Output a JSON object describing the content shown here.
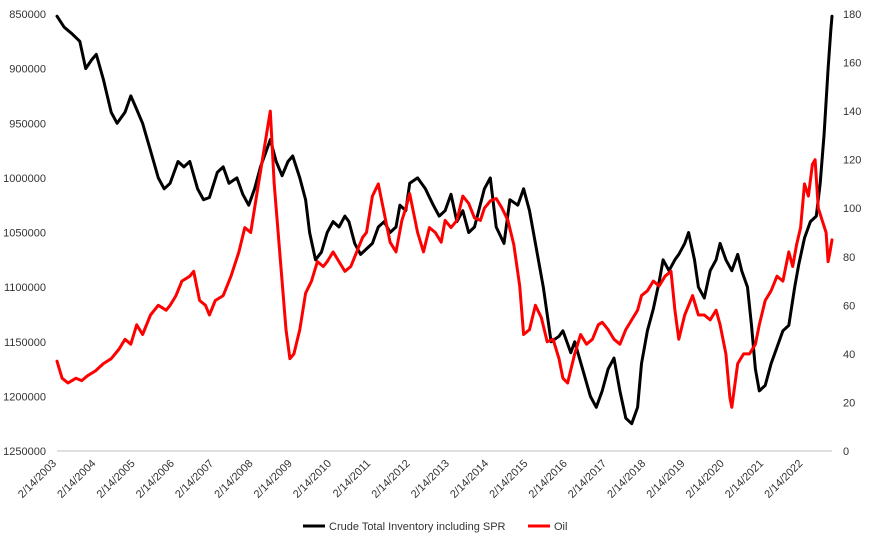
{
  "chart_data": {
    "type": "line",
    "title": "",
    "xlabel": "",
    "ylabel": "",
    "x_tick_labels": [
      "2/14/2003",
      "2/14/2004",
      "2/14/2005",
      "2/14/2006",
      "2/14/2007",
      "2/14/2008",
      "2/14/2009",
      "2/14/2010",
      "2/14/2011",
      "2/14/2012",
      "2/14/2013",
      "2/14/2014",
      "2/14/2015",
      "2/14/2016",
      "2/14/2017",
      "2/14/2018",
      "2/14/2019",
      "2/14/2020",
      "2/14/2021",
      "2/14/2022"
    ],
    "x_range": [
      2003.12,
      2022.85
    ],
    "left_axis": {
      "inverted": true,
      "ylim": [
        850000,
        1250000
      ],
      "tick_labels": [
        "850000",
        "900000",
        "950000",
        "1000000",
        "1050000",
        "1100000",
        "1150000",
        "1200000",
        "1250000"
      ]
    },
    "right_axis": {
      "ylim": [
        0,
        180
      ],
      "tick_labels": [
        "0",
        "20",
        "40",
        "60",
        "80",
        "100",
        "120",
        "140",
        "160",
        "180"
      ]
    },
    "grid": false,
    "legend_position": "bottom",
    "series": [
      {
        "name": "Crude Total Inventory including SPR",
        "axis": "left",
        "color": "#000000",
        "points": [
          [
            2003.12,
            852000
          ],
          [
            2003.3,
            862000
          ],
          [
            2003.5,
            868000
          ],
          [
            2003.7,
            875000
          ],
          [
            2003.85,
            900000
          ],
          [
            2004.0,
            892000
          ],
          [
            2004.12,
            887000
          ],
          [
            2004.3,
            910000
          ],
          [
            2004.5,
            940000
          ],
          [
            2004.65,
            950000
          ],
          [
            2004.85,
            940000
          ],
          [
            2005.0,
            925000
          ],
          [
            2005.12,
            935000
          ],
          [
            2005.3,
            950000
          ],
          [
            2005.5,
            975000
          ],
          [
            2005.7,
            1000000
          ],
          [
            2005.85,
            1010000
          ],
          [
            2006.0,
            1005000
          ],
          [
            2006.2,
            985000
          ],
          [
            2006.35,
            990000
          ],
          [
            2006.5,
            985000
          ],
          [
            2006.7,
            1010000
          ],
          [
            2006.85,
            1020000
          ],
          [
            2007.0,
            1018000
          ],
          [
            2007.2,
            995000
          ],
          [
            2007.35,
            990000
          ],
          [
            2007.5,
            1005000
          ],
          [
            2007.7,
            1000000
          ],
          [
            2007.85,
            1015000
          ],
          [
            2008.0,
            1025000
          ],
          [
            2008.15,
            1010000
          ],
          [
            2008.3,
            990000
          ],
          [
            2008.45,
            975000
          ],
          [
            2008.55,
            965000
          ],
          [
            2008.7,
            985000
          ],
          [
            2008.85,
            998000
          ],
          [
            2009.0,
            985000
          ],
          [
            2009.12,
            980000
          ],
          [
            2009.3,
            1000000
          ],
          [
            2009.45,
            1020000
          ],
          [
            2009.55,
            1050000
          ],
          [
            2009.7,
            1075000
          ],
          [
            2009.85,
            1068000
          ],
          [
            2010.0,
            1050000
          ],
          [
            2010.15,
            1040000
          ],
          [
            2010.3,
            1045000
          ],
          [
            2010.45,
            1035000
          ],
          [
            2010.55,
            1040000
          ],
          [
            2010.7,
            1060000
          ],
          [
            2010.85,
            1070000
          ],
          [
            2011.0,
            1065000
          ],
          [
            2011.15,
            1060000
          ],
          [
            2011.3,
            1045000
          ],
          [
            2011.45,
            1040000
          ],
          [
            2011.6,
            1050000
          ],
          [
            2011.75,
            1045000
          ],
          [
            2011.85,
            1025000
          ],
          [
            2012.0,
            1030000
          ],
          [
            2012.1,
            1005000
          ],
          [
            2012.3,
            1000000
          ],
          [
            2012.5,
            1010000
          ],
          [
            2012.7,
            1025000
          ],
          [
            2012.85,
            1035000
          ],
          [
            2013.0,
            1030000
          ],
          [
            2013.15,
            1015000
          ],
          [
            2013.3,
            1040000
          ],
          [
            2013.45,
            1030000
          ],
          [
            2013.6,
            1050000
          ],
          [
            2013.75,
            1045000
          ],
          [
            2014.0,
            1010000
          ],
          [
            2014.15,
            1000000
          ],
          [
            2014.3,
            1045000
          ],
          [
            2014.5,
            1060000
          ],
          [
            2014.65,
            1020000
          ],
          [
            2014.85,
            1025000
          ],
          [
            2015.0,
            1010000
          ],
          [
            2015.15,
            1030000
          ],
          [
            2015.3,
            1060000
          ],
          [
            2015.5,
            1100000
          ],
          [
            2015.7,
            1150000
          ],
          [
            2015.9,
            1145000
          ],
          [
            2016.0,
            1140000
          ],
          [
            2016.2,
            1160000
          ],
          [
            2016.3,
            1150000
          ],
          [
            2016.5,
            1175000
          ],
          [
            2016.7,
            1200000
          ],
          [
            2016.85,
            1210000
          ],
          [
            2017.0,
            1195000
          ],
          [
            2017.15,
            1175000
          ],
          [
            2017.3,
            1165000
          ],
          [
            2017.45,
            1195000
          ],
          [
            2017.6,
            1220000
          ],
          [
            2017.75,
            1225000
          ],
          [
            2017.9,
            1210000
          ],
          [
            2018.0,
            1170000
          ],
          [
            2018.15,
            1140000
          ],
          [
            2018.3,
            1120000
          ],
          [
            2018.45,
            1095000
          ],
          [
            2018.55,
            1075000
          ],
          [
            2018.7,
            1085000
          ],
          [
            2018.85,
            1075000
          ],
          [
            2018.95,
            1070000
          ],
          [
            2019.1,
            1060000
          ],
          [
            2019.2,
            1050000
          ],
          [
            2019.35,
            1075000
          ],
          [
            2019.45,
            1100000
          ],
          [
            2019.6,
            1110000
          ],
          [
            2019.75,
            1085000
          ],
          [
            2019.9,
            1075000
          ],
          [
            2020.0,
            1060000
          ],
          [
            2020.15,
            1075000
          ],
          [
            2020.3,
            1085000
          ],
          [
            2020.45,
            1070000
          ],
          [
            2020.55,
            1085000
          ],
          [
            2020.7,
            1100000
          ],
          [
            2020.8,
            1135000
          ],
          [
            2020.9,
            1175000
          ],
          [
            2021.0,
            1195000
          ],
          [
            2021.15,
            1190000
          ],
          [
            2021.3,
            1170000
          ],
          [
            2021.45,
            1155000
          ],
          [
            2021.6,
            1140000
          ],
          [
            2021.75,
            1135000
          ],
          [
            2021.9,
            1100000
          ],
          [
            2022.0,
            1080000
          ],
          [
            2022.15,
            1055000
          ],
          [
            2022.3,
            1040000
          ],
          [
            2022.45,
            1035000
          ],
          [
            2022.55,
            1005000
          ],
          [
            2022.65,
            960000
          ],
          [
            2022.75,
            900000
          ],
          [
            2022.82,
            865000
          ],
          [
            2022.85,
            852000
          ]
        ]
      },
      {
        "name": "Oil",
        "axis": "right",
        "color": "#ff0000",
        "points": [
          [
            2003.12,
            37
          ],
          [
            2003.25,
            30
          ],
          [
            2003.4,
            28
          ],
          [
            2003.6,
            30
          ],
          [
            2003.75,
            29
          ],
          [
            2003.9,
            31
          ],
          [
            2004.1,
            33
          ],
          [
            2004.3,
            36
          ],
          [
            2004.5,
            38
          ],
          [
            2004.7,
            42
          ],
          [
            2004.85,
            46
          ],
          [
            2005.0,
            44
          ],
          [
            2005.15,
            52
          ],
          [
            2005.3,
            48
          ],
          [
            2005.5,
            56
          ],
          [
            2005.7,
            60
          ],
          [
            2005.9,
            58
          ],
          [
            2006.0,
            60
          ],
          [
            2006.15,
            64
          ],
          [
            2006.3,
            70
          ],
          [
            2006.5,
            72
          ],
          [
            2006.6,
            74
          ],
          [
            2006.75,
            62
          ],
          [
            2006.9,
            60
          ],
          [
            2007.0,
            56
          ],
          [
            2007.15,
            62
          ],
          [
            2007.35,
            64
          ],
          [
            2007.55,
            72
          ],
          [
            2007.75,
            82
          ],
          [
            2007.9,
            92
          ],
          [
            2008.05,
            90
          ],
          [
            2008.2,
            105
          ],
          [
            2008.35,
            120
          ],
          [
            2008.5,
            135
          ],
          [
            2008.55,
            140
          ],
          [
            2008.65,
            110
          ],
          [
            2008.8,
            80
          ],
          [
            2008.95,
            50
          ],
          [
            2009.05,
            38
          ],
          [
            2009.15,
            40
          ],
          [
            2009.3,
            50
          ],
          [
            2009.45,
            65
          ],
          [
            2009.6,
            70
          ],
          [
            2009.75,
            78
          ],
          [
            2009.9,
            76
          ],
          [
            2010.0,
            78
          ],
          [
            2010.15,
            82
          ],
          [
            2010.3,
            78
          ],
          [
            2010.45,
            74
          ],
          [
            2010.6,
            76
          ],
          [
            2010.75,
            82
          ],
          [
            2010.9,
            88
          ],
          [
            2011.0,
            90
          ],
          [
            2011.15,
            105
          ],
          [
            2011.3,
            110
          ],
          [
            2011.45,
            98
          ],
          [
            2011.6,
            86
          ],
          [
            2011.75,
            82
          ],
          [
            2011.9,
            95
          ],
          [
            2012.0,
            100
          ],
          [
            2012.1,
            106
          ],
          [
            2012.3,
            90
          ],
          [
            2012.45,
            82
          ],
          [
            2012.6,
            92
          ],
          [
            2012.75,
            90
          ],
          [
            2012.9,
            86
          ],
          [
            2013.0,
            95
          ],
          [
            2013.15,
            92
          ],
          [
            2013.3,
            95
          ],
          [
            2013.45,
            105
          ],
          [
            2013.6,
            102
          ],
          [
            2013.75,
            96
          ],
          [
            2013.9,
            95
          ],
          [
            2014.0,
            100
          ],
          [
            2014.15,
            103
          ],
          [
            2014.3,
            104
          ],
          [
            2014.45,
            100
          ],
          [
            2014.6,
            95
          ],
          [
            2014.75,
            85
          ],
          [
            2014.9,
            68
          ],
          [
            2015.0,
            48
          ],
          [
            2015.15,
            50
          ],
          [
            2015.3,
            60
          ],
          [
            2015.45,
            55
          ],
          [
            2015.6,
            45
          ],
          [
            2015.75,
            46
          ],
          [
            2015.9,
            38
          ],
          [
            2016.0,
            30
          ],
          [
            2016.12,
            28
          ],
          [
            2016.3,
            40
          ],
          [
            2016.45,
            48
          ],
          [
            2016.6,
            44
          ],
          [
            2016.75,
            46
          ],
          [
            2016.9,
            52
          ],
          [
            2017.0,
            53
          ],
          [
            2017.15,
            50
          ],
          [
            2017.3,
            46
          ],
          [
            2017.45,
            44
          ],
          [
            2017.6,
            50
          ],
          [
            2017.75,
            54
          ],
          [
            2017.9,
            58
          ],
          [
            2018.0,
            64
          ],
          [
            2018.15,
            66
          ],
          [
            2018.3,
            70
          ],
          [
            2018.45,
            68
          ],
          [
            2018.6,
            72
          ],
          [
            2018.75,
            74
          ],
          [
            2018.85,
            58
          ],
          [
            2018.95,
            46
          ],
          [
            2019.1,
            56
          ],
          [
            2019.3,
            64
          ],
          [
            2019.45,
            56
          ],
          [
            2019.6,
            56
          ],
          [
            2019.75,
            54
          ],
          [
            2019.9,
            58
          ],
          [
            2020.0,
            52
          ],
          [
            2020.15,
            40
          ],
          [
            2020.25,
            22
          ],
          [
            2020.3,
            18
          ],
          [
            2020.45,
            36
          ],
          [
            2020.6,
            40
          ],
          [
            2020.75,
            40
          ],
          [
            2020.9,
            44
          ],
          [
            2021.0,
            52
          ],
          [
            2021.15,
            62
          ],
          [
            2021.3,
            66
          ],
          [
            2021.45,
            72
          ],
          [
            2021.6,
            70
          ],
          [
            2021.75,
            82
          ],
          [
            2021.85,
            76
          ],
          [
            2021.95,
            85
          ],
          [
            2022.05,
            92
          ],
          [
            2022.15,
            110
          ],
          [
            2022.25,
            105
          ],
          [
            2022.35,
            118
          ],
          [
            2022.42,
            120
          ],
          [
            2022.5,
            100
          ],
          [
            2022.6,
            95
          ],
          [
            2022.7,
            90
          ],
          [
            2022.75,
            78
          ],
          [
            2022.8,
            82
          ],
          [
            2022.85,
            87
          ]
        ]
      }
    ]
  }
}
